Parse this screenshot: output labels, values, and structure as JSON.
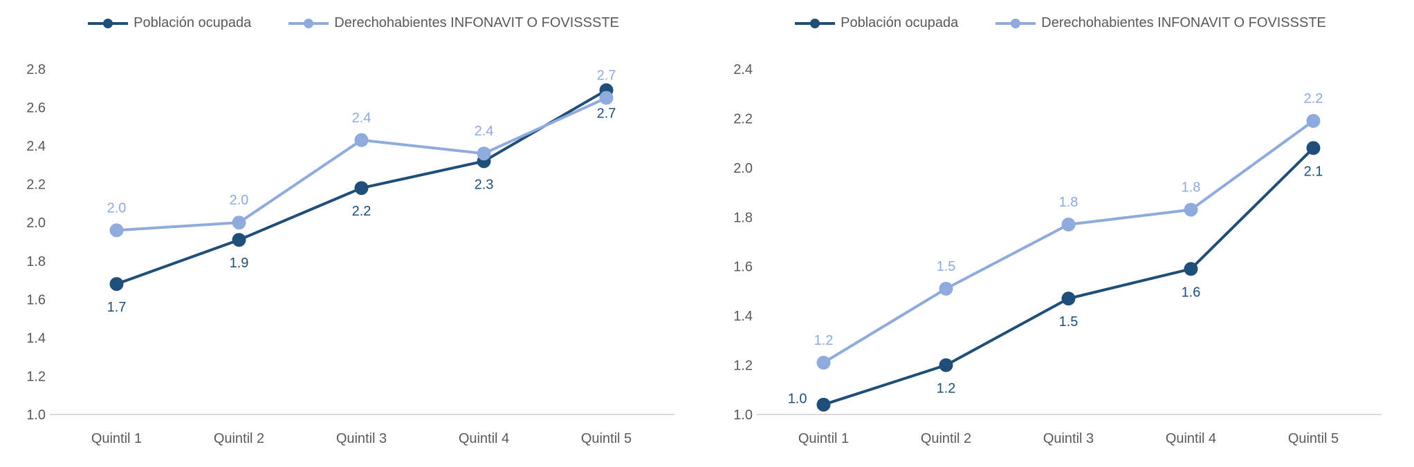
{
  "figure": {
    "background": "#FFFFFF",
    "axis_line_color": "#D9D9D9",
    "tick_text_color": "#595959",
    "legend_text_color": "#595959"
  },
  "legend": {
    "items": [
      {
        "label": "Población ocupada",
        "color": "#1F4E79"
      },
      {
        "label": "Derechohabientes INFONAVIT O FOVISSSTE",
        "color": "#8FAADC"
      }
    ]
  },
  "chart_data": [
    {
      "type": "line",
      "title": "",
      "xlabel": "",
      "ylabel": "",
      "categories": [
        "Quintil 1",
        "Quintil 2",
        "Quintil 3",
        "Quintil 4",
        "Quintil 5"
      ],
      "series": [
        {
          "name": "Población ocupada",
          "color": "#1F4E79",
          "values": [
            1.68,
            1.91,
            2.18,
            2.32,
            2.69
          ],
          "labels": [
            "1.7",
            "1.9",
            "2.2",
            "2.3",
            "2.7"
          ],
          "label_positions": [
            "below",
            "below",
            "below",
            "below",
            "below"
          ]
        },
        {
          "name": "Derechohabientes INFONAVIT O FOVISSSTE",
          "color": "#8FAADC",
          "values": [
            1.96,
            2.0,
            2.43,
            2.36,
            2.65
          ],
          "labels": [
            "2.0",
            "2.0",
            "2.4",
            "2.4",
            "2.7"
          ],
          "label_positions": [
            "above",
            "above",
            "above",
            "above",
            "above"
          ]
        }
      ],
      "ylim": [
        1.0,
        2.8
      ],
      "ytick_step": 0.2,
      "yticks": [
        "2.8",
        "2.6",
        "2.4",
        "2.2",
        "2.0",
        "1.8",
        "1.6",
        "1.4",
        "1.2",
        "1.0"
      ],
      "grid": false,
      "legend_position": "top",
      "axis_color": "#D9D9D9"
    },
    {
      "type": "line",
      "title": "",
      "xlabel": "",
      "ylabel": "",
      "categories": [
        "Quintil 1",
        "Quintil 2",
        "Quintil 3",
        "Quintil 4",
        "Quintil 5"
      ],
      "series": [
        {
          "name": "Población ocupada",
          "color": "#1F4E79",
          "values": [
            1.04,
            1.2,
            1.47,
            1.59,
            2.08
          ],
          "labels": [
            "1.0",
            "1.2",
            "1.5",
            "1.6",
            "2.1"
          ],
          "label_positions": [
            "left",
            "below",
            "below",
            "below",
            "below"
          ]
        },
        {
          "name": "Derechohabientes INFONAVIT O FOVISSSTE",
          "color": "#8FAADC",
          "values": [
            1.21,
            1.51,
            1.77,
            1.83,
            2.19
          ],
          "labels": [
            "1.2",
            "1.5",
            "1.8",
            "1.8",
            "2.2"
          ],
          "label_positions": [
            "above",
            "above",
            "above",
            "above",
            "above"
          ]
        }
      ],
      "ylim": [
        1.0,
        2.4
      ],
      "ytick_step": 0.2,
      "yticks": [
        "2.4",
        "2.2",
        "2.0",
        "1.8",
        "1.6",
        "1.4",
        "1.2",
        "1.0"
      ],
      "grid": false,
      "legend_position": "top",
      "axis_color": "#D9D9D9"
    }
  ]
}
